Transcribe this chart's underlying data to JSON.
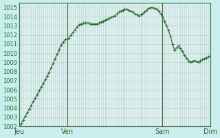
{
  "title": "",
  "background_color": "#c8eeed",
  "plot_bg_color": "#dff0ef",
  "grid_color": "#b0d0cf",
  "line_color": "#2d6e2d",
  "marker_color": "#2d6e2d",
  "ylim": [
    1002,
    1015.5
  ],
  "yticks": [
    1002,
    1003,
    1004,
    1005,
    1006,
    1007,
    1008,
    1009,
    1010,
    1011,
    1012,
    1013,
    1014,
    1015
  ],
  "xtick_labels": [
    "Jeu",
    "Ven",
    "Sam",
    "Dim"
  ],
  "xtick_positions": [
    0,
    24,
    72,
    96
  ],
  "vline_positions": [
    0,
    24,
    72,
    96
  ],
  "x": [
    0,
    1,
    2,
    3,
    4,
    5,
    6,
    7,
    8,
    9,
    10,
    11,
    12,
    13,
    14,
    15,
    16,
    17,
    18,
    19,
    20,
    21,
    22,
    23,
    24,
    25,
    26,
    27,
    28,
    29,
    30,
    31,
    32,
    33,
    34,
    35,
    36,
    37,
    38,
    39,
    40,
    41,
    42,
    43,
    44,
    45,
    46,
    47,
    48,
    49,
    50,
    51,
    52,
    53,
    54,
    55,
    56,
    57,
    58,
    59,
    60,
    61,
    62,
    63,
    64,
    65,
    66,
    67,
    68,
    69,
    70,
    71,
    72,
    73,
    74,
    75,
    76,
    77,
    78,
    79,
    80,
    81,
    82,
    83,
    84,
    85,
    86,
    87,
    88,
    89,
    90,
    91,
    92,
    93,
    94,
    95,
    96
  ],
  "y": [
    1002.0,
    1002.3,
    1002.7,
    1003.1,
    1003.5,
    1003.9,
    1004.3,
    1004.7,
    1005.1,
    1005.5,
    1005.9,
    1006.3,
    1006.7,
    1007.1,
    1007.5,
    1007.9,
    1008.4,
    1008.9,
    1009.4,
    1009.9,
    1010.4,
    1010.9,
    1011.2,
    1011.5,
    1011.5,
    1011.7,
    1012.0,
    1012.3,
    1012.6,
    1012.9,
    1013.1,
    1013.2,
    1013.3,
    1013.3,
    1013.3,
    1013.3,
    1013.2,
    1013.2,
    1013.2,
    1013.2,
    1013.3,
    1013.4,
    1013.5,
    1013.6,
    1013.7,
    1013.8,
    1013.9,
    1014.0,
    1014.1,
    1014.3,
    1014.5,
    1014.6,
    1014.7,
    1014.8,
    1014.8,
    1014.7,
    1014.6,
    1014.5,
    1014.3,
    1014.2,
    1014.1,
    1014.2,
    1014.3,
    1014.5,
    1014.7,
    1014.9,
    1015.0,
    1015.0,
    1014.9,
    1014.8,
    1014.6,
    1014.3,
    1014.0,
    1013.5,
    1013.0,
    1012.5,
    1011.8,
    1011.0,
    1010.3,
    1010.6,
    1010.8,
    1010.5,
    1010.2,
    1009.8,
    1009.5,
    1009.2,
    1009.0,
    1009.1,
    1009.2,
    1009.1,
    1009.0,
    1009.2,
    1009.3,
    1009.4,
    1009.5,
    1009.6,
    1009.7
  ]
}
